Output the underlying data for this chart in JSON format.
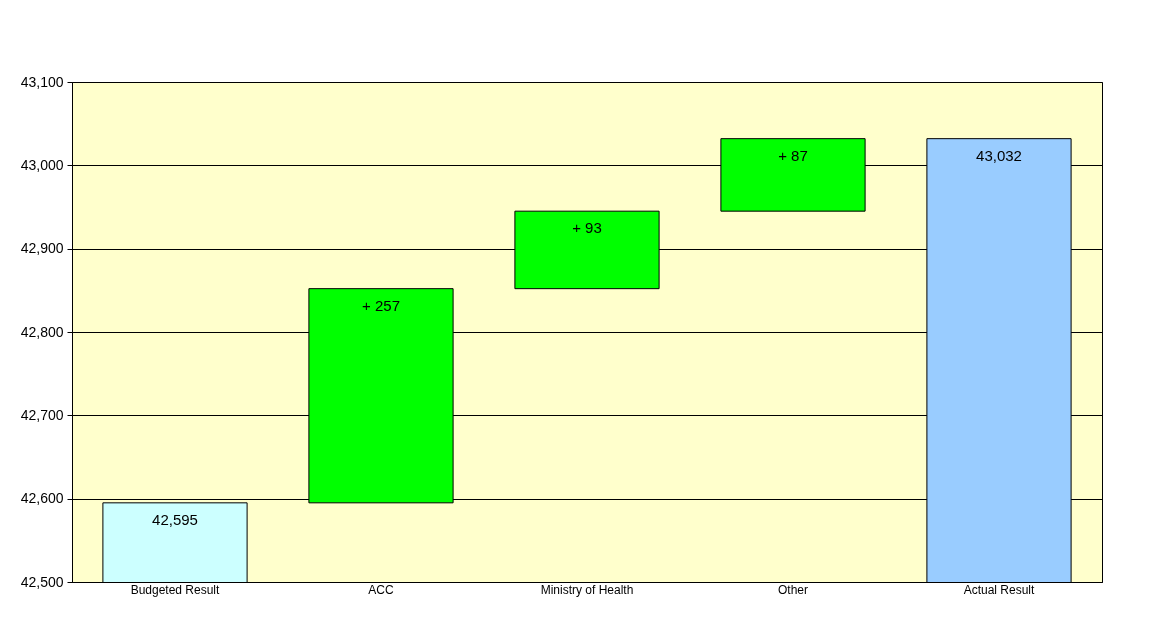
{
  "chart_data": {
    "type": "bar",
    "categories": [
      "Budgeted Result",
      "ACC",
      "Ministry of Health",
      "Other",
      "Actual Result"
    ],
    "values": [
      42595,
      257,
      93,
      87,
      43032
    ],
    "base": [
      null,
      42595,
      42852,
      42945,
      null
    ],
    "colors": [
      "#ccffff",
      "#00ff00",
      "#00ff00",
      "#00ff00",
      "#99ccff"
    ],
    "value_labels": [
      "42,595",
      "+ 257",
      "+ 93",
      "+ 87",
      "43,032"
    ],
    "ylim": [
      42500,
      43100
    ],
    "yticks": [
      {
        "value": 42500,
        "label": "42,500"
      },
      {
        "value": 42600,
        "label": "42,600"
      },
      {
        "value": 42700,
        "label": "42,700"
      },
      {
        "value": 42800,
        "label": "42,800"
      },
      {
        "value": 42900,
        "label": "42,900"
      },
      {
        "value": 43000,
        "label": "43,000"
      },
      {
        "value": 43100,
        "label": "43,100"
      }
    ],
    "grid": "y",
    "legend": false
  }
}
